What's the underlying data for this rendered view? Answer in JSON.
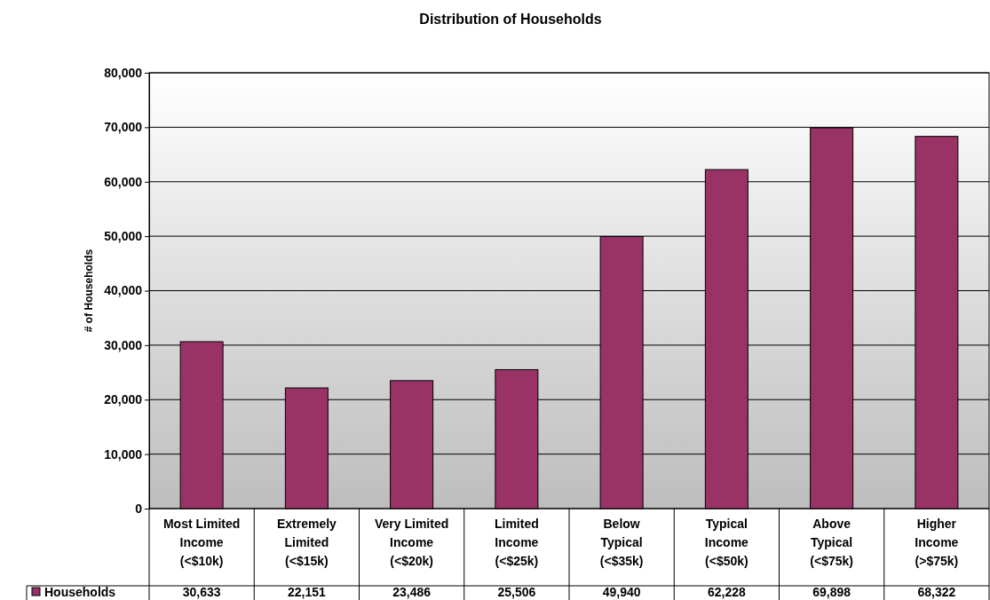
{
  "chart_data": {
    "type": "bar",
    "title": "Distribution of Households",
    "ylabel": "# of Households",
    "categories": [
      "Most Limited Income (<$10k)",
      "Extremely Limited (<$15k)",
      "Very Limited Income (<$20k)",
      "Limited Income (<$25k)",
      "Below Typical (<$35k)",
      "Typical Income (<$50k)",
      "Above Typical (<$75k)",
      "Higher Income (>$75k)"
    ],
    "series": [
      {
        "name": "Households",
        "color": "#993366",
        "values": [
          30633,
          22151,
          23486,
          25506,
          49940,
          62228,
          69898,
          68322
        ],
        "value_labels": [
          "30,633",
          "22,151",
          "23,486",
          "25,506",
          "49,940",
          "62,228",
          "69,898",
          "68,322"
        ]
      }
    ],
    "ylim": [
      0,
      80000
    ],
    "yticks": [
      {
        "value": 0,
        "label": "0"
      },
      {
        "value": 10000,
        "label": "10,000"
      },
      {
        "value": 20000,
        "label": "20,000"
      },
      {
        "value": 30000,
        "label": "30,000"
      },
      {
        "value": 40000,
        "label": "40,000"
      },
      {
        "value": 50000,
        "label": "50,000"
      },
      {
        "value": 60000,
        "label": "60,000"
      },
      {
        "value": 70000,
        "label": "70,000"
      },
      {
        "value": 80000,
        "label": "80,000"
      }
    ],
    "grid": "y",
    "legend": "bottom"
  }
}
